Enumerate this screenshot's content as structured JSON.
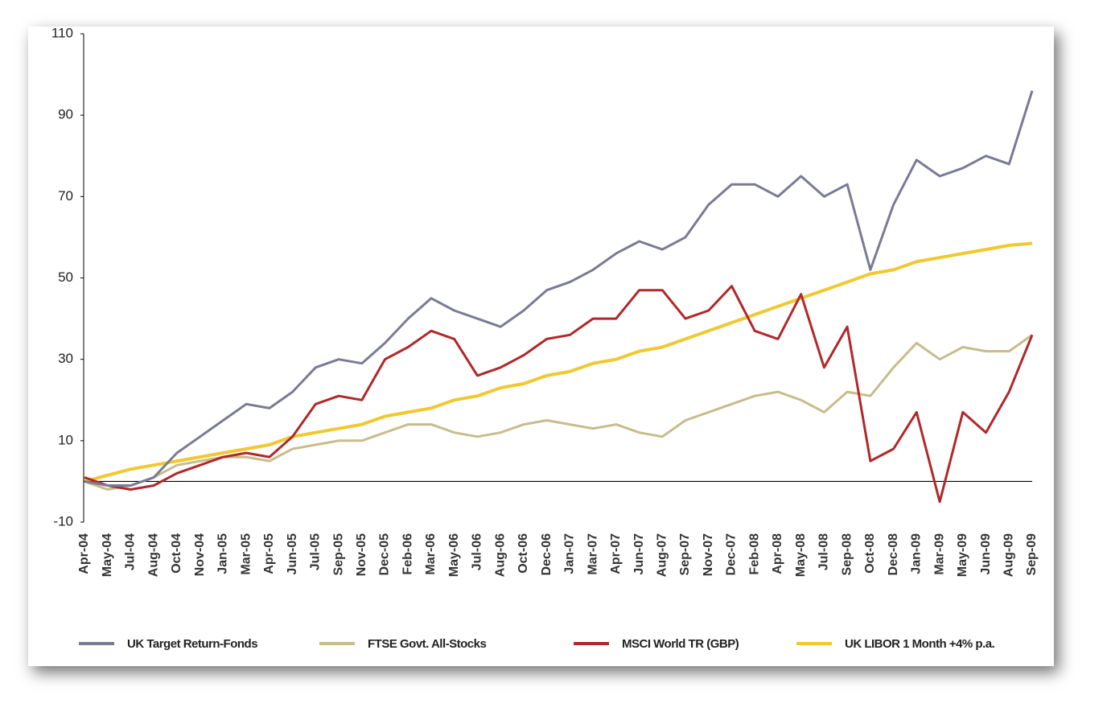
{
  "chart_data": {
    "type": "line",
    "categories": [
      "Apr-04",
      "May-04",
      "Jul-04",
      "Aug-04",
      "Oct-04",
      "Nov-04",
      "Jan-05",
      "Mar-05",
      "Apr-05",
      "Jun-05",
      "Jul-05",
      "Sep-05",
      "Nov-05",
      "Dec-05",
      "Feb-06",
      "Mar-06",
      "May-06",
      "Jul-06",
      "Aug-06",
      "Oct-06",
      "Dec-06",
      "Jan-07",
      "Mar-07",
      "Apr-07",
      "Jun-07",
      "Aug-07",
      "Sep-07",
      "Nov-07",
      "Dec-07",
      "Feb-08",
      "Apr-08",
      "May-08",
      "Jul-08",
      "Sep-08",
      "Oct-08",
      "Dec-08",
      "Jan-09",
      "Mar-09",
      "May-09",
      "Jun-09",
      "Aug-09",
      "Sep-09"
    ],
    "series": [
      {
        "name": "UK Target Return-Fonds",
        "color": "#7a7a96",
        "values": [
          0,
          -1,
          -1,
          1,
          7,
          11,
          15,
          19,
          18,
          22,
          28,
          30,
          29,
          34,
          40,
          45,
          42,
          40,
          38,
          42,
          47,
          49,
          52,
          56,
          59,
          57,
          60,
          68,
          73,
          73,
          70,
          75,
          70,
          73,
          52,
          68,
          79,
          75,
          77,
          80,
          78,
          96
        ]
      },
      {
        "name": "FTSE Govt. All-Stocks",
        "color": "#c8bc8c",
        "values": [
          0,
          -2,
          -1,
          1,
          4,
          5,
          6,
          6,
          5,
          8,
          9,
          10,
          10,
          12,
          14,
          14,
          12,
          11,
          12,
          14,
          15,
          14,
          13,
          14,
          12,
          11,
          15,
          17,
          19,
          21,
          22,
          20,
          17,
          22,
          21,
          28,
          34,
          30,
          33,
          32,
          32,
          36
        ]
      },
      {
        "name": "MSCI World TR (GBP)",
        "color": "#b0282a",
        "values": [
          1,
          -1,
          -2,
          -1,
          2,
          4,
          6,
          7,
          6,
          11,
          19,
          21,
          20,
          30,
          33,
          37,
          35,
          26,
          28,
          31,
          35,
          36,
          40,
          40,
          47,
          47,
          40,
          42,
          48,
          37,
          35,
          46,
          28,
          38,
          5,
          8,
          17,
          -5,
          17,
          12,
          22,
          36
        ]
      },
      {
        "name": "UK LIBOR 1 Month +4% p.a.",
        "color": "#f0c830",
        "values": [
          0,
          1.5,
          3,
          4,
          5,
          6,
          7,
          8,
          9,
          11,
          12,
          13,
          14,
          16,
          17,
          18,
          20,
          21,
          23,
          24,
          26,
          27,
          29,
          30,
          32,
          33,
          35,
          37,
          39,
          41,
          43,
          45,
          47,
          49,
          51,
          52,
          54,
          55,
          56,
          57,
          58,
          58.5
        ]
      }
    ],
    "ylim": [
      -10,
      110
    ],
    "yticks": [
      -10,
      10,
      30,
      50,
      70,
      90,
      110
    ]
  }
}
